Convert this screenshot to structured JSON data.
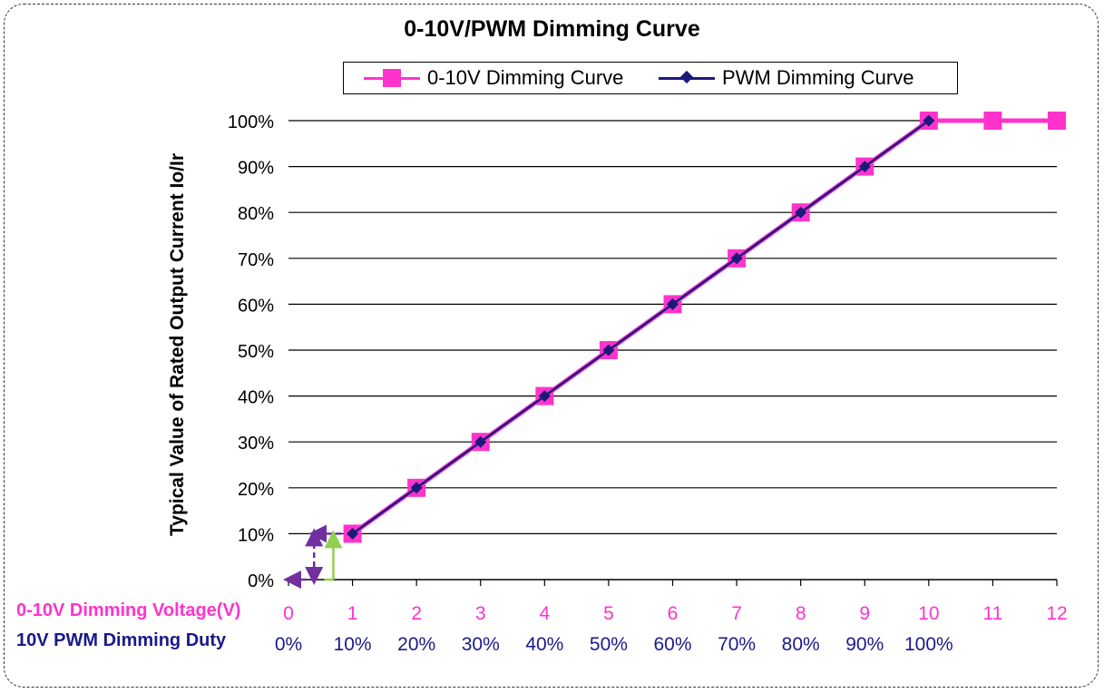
{
  "chart_data": {
    "type": "line",
    "title": "0-10V/PWM Dimming Curve",
    "ylabel": "Typical Value of Rated Output Current Io/Ir",
    "ylim": [
      0,
      100
    ],
    "y_ticks": [
      "0%",
      "10%",
      "20%",
      "30%",
      "40%",
      "50%",
      "60%",
      "70%",
      "80%",
      "90%",
      "100%"
    ],
    "x_rows": [
      {
        "name": "0-10V Dimming Voltage(V)",
        "color": "#ff33cc",
        "ticks": [
          "0",
          "1",
          "2",
          "3",
          "4",
          "5",
          "6",
          "7",
          "8",
          "9",
          "10",
          "11",
          "12"
        ]
      },
      {
        "name": "10V PWM Dimming Duty",
        "color": "#1a1a8a",
        "ticks": [
          "0%",
          "10%",
          "20%",
          "30%",
          "40%",
          "50%",
          "60%",
          "70%",
          "80%",
          "90%",
          "100%",
          "",
          ""
        ]
      }
    ],
    "xlim": [
      0,
      12
    ],
    "grid": true,
    "legend_position": "top-center",
    "series": [
      {
        "name": "0-10V Dimming Curve",
        "color": "#ff33cc",
        "marker": "square",
        "x": [
          1,
          2,
          3,
          4,
          5,
          6,
          7,
          8,
          9,
          10,
          11,
          12
        ],
        "values": [
          10,
          20,
          30,
          40,
          50,
          60,
          70,
          80,
          90,
          100,
          100,
          100
        ]
      },
      {
        "name": "PWM Dimming Curve",
        "color": "#1a1a7a",
        "marker": "diamond",
        "x": [
          1,
          2,
          3,
          4,
          5,
          6,
          7,
          8,
          9,
          10
        ],
        "values": [
          10,
          20,
          30,
          40,
          50,
          60,
          70,
          80,
          90,
          100
        ]
      }
    ],
    "annotations": [
      {
        "type": "dashed-arrows",
        "color": "#7030a0",
        "x": [
          0,
          0.4
        ],
        "y": [
          0,
          10
        ]
      },
      {
        "type": "solid-arrow",
        "color": "#92d050",
        "x": [
          0.7
        ],
        "y": [
          0,
          10
        ]
      }
    ]
  }
}
